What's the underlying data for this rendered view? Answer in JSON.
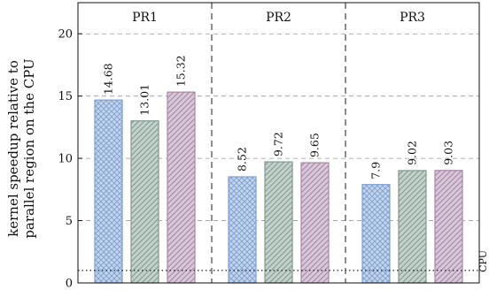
{
  "chart_data": {
    "type": "bar",
    "ylabel_lines": [
      "kernel speedup relative to",
      "parallel region on the CPU"
    ],
    "groups": [
      "PR1",
      "PR2",
      "PR3"
    ],
    "series": [
      {
        "values": [
          14.68,
          8.52,
          7.9
        ],
        "color": "#7b9fd1",
        "pattern": "crosshatch"
      },
      {
        "values": [
          13.01,
          9.72,
          9.02
        ],
        "color": "#7f9a8e",
        "pattern": "diagonal"
      },
      {
        "values": [
          15.32,
          9.65,
          9.03
        ],
        "color": "#a885a8",
        "pattern": "diagonal"
      }
    ],
    "value_labels": [
      [
        "14.68",
        "13.01",
        "15.32"
      ],
      [
        "8.52",
        "9.72",
        "9.65"
      ],
      [
        "7.9",
        "9.02",
        "9.03"
      ]
    ],
    "yticks": [
      "0",
      "5",
      "10",
      "15",
      "20"
    ],
    "ylim": [
      0,
      22.5
    ],
    "reference_line": {
      "value": 1,
      "label": "CPU",
      "style": "dotted"
    },
    "grid": "horizontal dashed",
    "group_separators": "dashed vertical"
  }
}
